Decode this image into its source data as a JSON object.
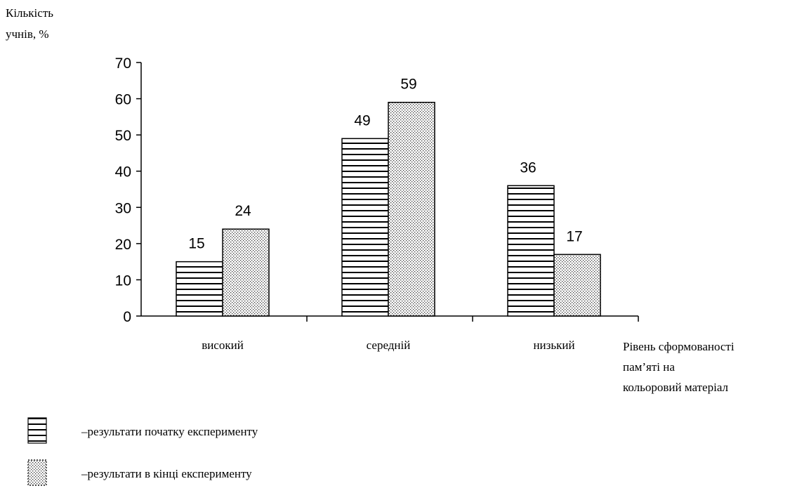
{
  "chart_data": {
    "type": "bar",
    "ylabel": "Кількість учнів, %",
    "xlabel": "Рівень сформованості пам’яті на кольоровий матеріал",
    "categories": [
      "високий",
      "середній",
      "низький"
    ],
    "series": [
      {
        "name": "–результати початку експерименту",
        "values": [
          15,
          49,
          36
        ],
        "pattern": "horizontal-stripes"
      },
      {
        "name": "–результати в кінці експерименту",
        "values": [
          24,
          59,
          17
        ],
        "pattern": "dots"
      }
    ],
    "ylim": [
      0,
      70
    ],
    "yticks": [
      0,
      10,
      20,
      30,
      40,
      50,
      60,
      70
    ],
    "grid": false,
    "legend_position": "bottom-left",
    "colors": {
      "ink": "#000000",
      "background": "#ffffff"
    }
  }
}
